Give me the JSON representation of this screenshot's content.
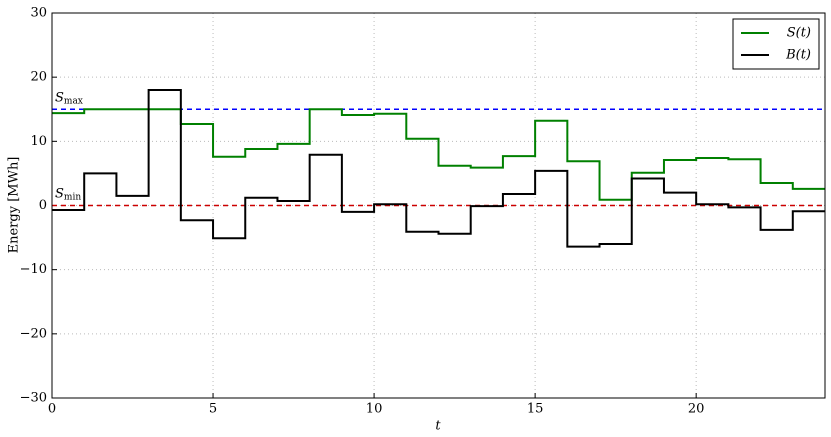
{
  "chart_data": {
    "type": "step",
    "x_label": "t",
    "y_label": "Energy [MWh]",
    "x": [
      0,
      1,
      2,
      3,
      4,
      5,
      6,
      7,
      8,
      9,
      10,
      11,
      12,
      13,
      14,
      15,
      16,
      17,
      18,
      19,
      20,
      21,
      22,
      23
    ],
    "series": [
      {
        "name": "S(t)",
        "color": "#008000",
        "values": [
          14.4,
          15,
          15,
          15,
          12.7,
          7.6,
          8.8,
          9.6,
          15,
          14.1,
          14.3,
          10.4,
          6.2,
          5.9,
          7.7,
          13.2,
          6.9,
          0.9,
          5.1,
          7.1,
          7.4,
          7.2,
          3.5,
          2.6
        ]
      },
      {
        "name": "B(t)",
        "color": "#000000",
        "values": [
          -0.7,
          5,
          1.5,
          18,
          -2.3,
          -5.1,
          1.2,
          0.7,
          7.9,
          -1,
          0.2,
          -4.1,
          -4.4,
          -0.1,
          1.8,
          5.4,
          -6.4,
          -6,
          4.2,
          2,
          0.2,
          -0.3,
          -3.8,
          -0.9
        ]
      }
    ],
    "reference_lines": [
      {
        "text": "S",
        "sub": "max",
        "value": 15,
        "color": "#0000ff"
      },
      {
        "text": "S",
        "sub": "min",
        "value": 0,
        "color": "#cc0000"
      }
    ],
    "xlim": [
      0,
      24
    ],
    "ylim": [
      -30,
      30
    ],
    "xticks": [
      0,
      5,
      10,
      15,
      20
    ],
    "yticks": [
      {
        "value": -30,
        "label": "−30"
      },
      {
        "value": -20,
        "label": "−20"
      },
      {
        "value": -10,
        "label": "−10"
      },
      0,
      10,
      20,
      30
    ],
    "grid": true,
    "legend": "upper right"
  }
}
